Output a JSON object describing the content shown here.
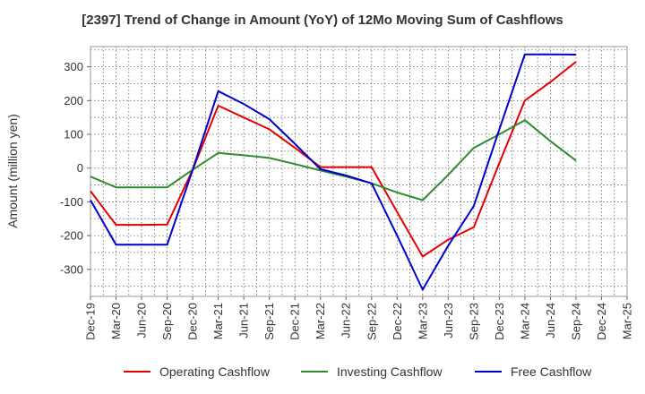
{
  "chart_data": {
    "type": "line",
    "title": "[2397]  Trend of Change in Amount (YoY) of 12Mo Moving Sum of Cashflows",
    "xlabel": "",
    "ylabel": "Amount (million yen)",
    "ylim": [
      -380,
      360
    ],
    "yticks": [
      -300,
      -200,
      -100,
      0,
      100,
      200,
      300
    ],
    "grid": true,
    "legend_position": "bottom",
    "categories": [
      "Dec-19",
      "Mar-20",
      "Jun-20",
      "Sep-20",
      "Dec-20",
      "Mar-21",
      "Jun-21",
      "Sep-21",
      "Dec-21",
      "Mar-22",
      "Jun-22",
      "Sep-22",
      "Dec-22",
      "Mar-23",
      "Jun-23",
      "Sep-23",
      "Dec-23",
      "Mar-24",
      "Jun-24",
      "Sep-24",
      "Dec-24",
      "Mar-25"
    ],
    "series": [
      {
        "name": "Operating Cashflow",
        "color": "#e60000",
        "values": [
          -68,
          -168,
          -168,
          -167,
          -5,
          185,
          150,
          115,
          60,
          3,
          3,
          3,
          -130,
          -262,
          -212,
          -175,
          15,
          200,
          255,
          315,
          null,
          null
        ]
      },
      {
        "name": "Investing Cashflow",
        "color": "#2e8b2e",
        "values": [
          -25,
          -57,
          -57,
          -57,
          -5,
          45,
          38,
          30,
          12,
          -7,
          -25,
          -45,
          -72,
          -95,
          -20,
          60,
          100,
          142,
          80,
          22,
          null,
          null
        ]
      },
      {
        "name": "Free Cashflow",
        "color": "#0000cc",
        "values": [
          -95,
          -227,
          -227,
          -227,
          -5,
          228,
          190,
          145,
          72,
          -3,
          -22,
          -45,
          -200,
          -360,
          -230,
          -112,
          115,
          337,
          337,
          336,
          null,
          null
        ]
      }
    ]
  }
}
